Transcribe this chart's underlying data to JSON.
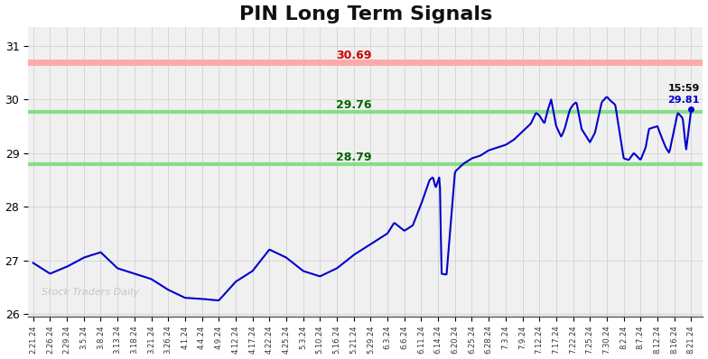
{
  "title": "PIN Long Term Signals",
  "title_fontsize": 16,
  "title_fontweight": "bold",
  "background_color": "#ffffff",
  "plot_bg_color": "#f0f0f0",
  "line_color": "#0000cc",
  "line_width": 1.5,
  "red_line": 30.69,
  "green_line_upper": 29.76,
  "green_line_lower": 28.79,
  "red_line_color": "#ffaaaa",
  "green_line_color": "#88dd88",
  "red_label_color": "#cc0000",
  "green_label_color": "#006600",
  "last_price": 29.81,
  "last_time": "15:59",
  "ylim": [
    25.95,
    31.35
  ],
  "yticks": [
    26,
    27,
    28,
    29,
    30,
    31
  ],
  "watermark": "Stock Traders Daily",
  "x_labels": [
    "2.21.24",
    "2.26.24",
    "2.29.24",
    "3.5.24",
    "3.8.24",
    "3.13.24",
    "3.18.24",
    "3.21.24",
    "3.26.24",
    "4.1.24",
    "4.4.24",
    "4.9.24",
    "4.12.24",
    "4.17.24",
    "4.22.24",
    "4.25.24",
    "5.3.24",
    "5.10.24",
    "5.16.24",
    "5.21.24",
    "5.29.24",
    "6.3.24",
    "6.6.24",
    "6.11.24",
    "6.14.24",
    "6.20.24",
    "6.25.24",
    "6.28.24",
    "7.3.24",
    "7.9.24",
    "7.12.24",
    "7.17.24",
    "7.22.24",
    "7.25.24",
    "7.30.24",
    "8.2.24",
    "8.7.24",
    "8.12.24",
    "8.16.24",
    "8.21.24"
  ],
  "key_points": [
    [
      0,
      26.95
    ],
    [
      1,
      26.75
    ],
    [
      2,
      26.88
    ],
    [
      3,
      27.05
    ],
    [
      4,
      27.15
    ],
    [
      5,
      26.85
    ],
    [
      6,
      26.75
    ],
    [
      7,
      26.65
    ],
    [
      8,
      26.45
    ],
    [
      9,
      26.3
    ],
    [
      10,
      26.28
    ],
    [
      11,
      26.25
    ],
    [
      12,
      26.6
    ],
    [
      13,
      26.8
    ],
    [
      14,
      27.2
    ],
    [
      15,
      27.05
    ],
    [
      16,
      26.8
    ],
    [
      17,
      26.7
    ],
    [
      18,
      26.85
    ],
    [
      19,
      27.1
    ],
    [
      20,
      27.3
    ],
    [
      21,
      27.5
    ],
    [
      21.4,
      27.7
    ],
    [
      22,
      27.55
    ],
    [
      22.5,
      27.65
    ],
    [
      23,
      28.05
    ],
    [
      23.5,
      28.5
    ],
    [
      23.7,
      28.55
    ],
    [
      23.85,
      28.35
    ],
    [
      24,
      28.48
    ],
    [
      24.1,
      28.58
    ],
    [
      24.2,
      26.75
    ],
    [
      24.5,
      26.73
    ],
    [
      25,
      28.65
    ],
    [
      25.5,
      28.8
    ],
    [
      26,
      28.9
    ],
    [
      26.5,
      28.95
    ],
    [
      27,
      29.05
    ],
    [
      27.5,
      29.1
    ],
    [
      28,
      29.15
    ],
    [
      28.5,
      29.25
    ],
    [
      29,
      29.4
    ],
    [
      29.5,
      29.55
    ],
    [
      29.8,
      29.75
    ],
    [
      30,
      29.7
    ],
    [
      30.3,
      29.55
    ],
    [
      30.5,
      29.8
    ],
    [
      30.7,
      30.0
    ],
    [
      31,
      29.5
    ],
    [
      31.3,
      29.3
    ],
    [
      31.5,
      29.45
    ],
    [
      31.8,
      29.8
    ],
    [
      32,
      29.9
    ],
    [
      32.2,
      29.95
    ],
    [
      32.5,
      29.45
    ],
    [
      33,
      29.2
    ],
    [
      33.3,
      29.38
    ],
    [
      33.7,
      29.95
    ],
    [
      34,
      30.05
    ],
    [
      34.2,
      29.98
    ],
    [
      34.5,
      29.9
    ],
    [
      35,
      28.9
    ],
    [
      35.3,
      28.87
    ],
    [
      35.6,
      29.0
    ],
    [
      36,
      28.87
    ],
    [
      36.3,
      29.1
    ],
    [
      36.5,
      29.45
    ],
    [
      37,
      29.5
    ],
    [
      37.3,
      29.25
    ],
    [
      37.5,
      29.1
    ],
    [
      37.7,
      29.0
    ],
    [
      38,
      29.45
    ],
    [
      38.2,
      29.75
    ],
    [
      38.5,
      29.65
    ],
    [
      38.7,
      29.05
    ],
    [
      39,
      29.81
    ]
  ]
}
